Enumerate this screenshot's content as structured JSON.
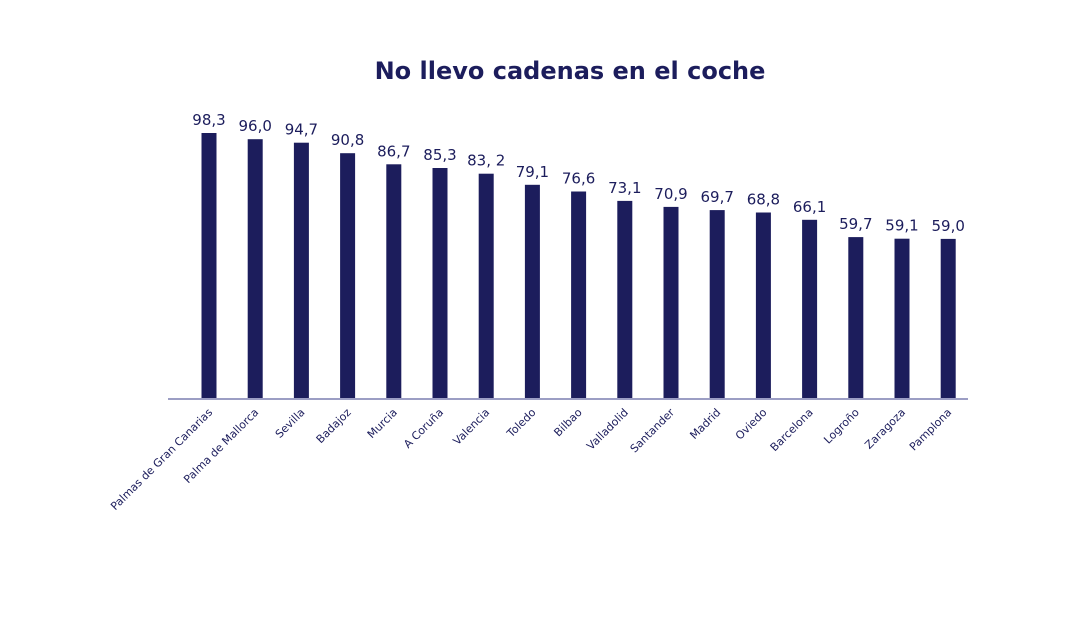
{
  "chart_data": {
    "type": "bar",
    "title": "No llevo cadenas en el coche",
    "xlabel": "",
    "ylabel": "",
    "ylim": [
      0,
      100
    ],
    "grid": false,
    "legend": "none",
    "bar_color": "#1c1d5c",
    "text_color": "#1c1d5c",
    "axis_color": "#3a3c8a",
    "categories": [
      "Palmas de Gran Canarias",
      "Palma de Mallorca",
      "Sevilla",
      "Badajoz",
      "Murcia",
      "A Coruña",
      "Valencia",
      "Toledo",
      "Bilbao",
      "Valladolid",
      "Santander",
      "Madrid",
      "Oviedo",
      "Barcelona",
      "Logroño",
      "Zaragoza",
      "Pamplona"
    ],
    "values": [
      98.3,
      96.0,
      94.7,
      90.8,
      86.7,
      85.3,
      83.2,
      79.1,
      76.6,
      73.1,
      70.9,
      69.7,
      68.8,
      66.1,
      59.7,
      59.1,
      59.0
    ],
    "value_labels": [
      "98,3",
      "96,0",
      "94,7",
      "90,8",
      "86,7",
      "85,3",
      "83, 2",
      "79,1",
      "76,6",
      "73,1",
      "70,9",
      "69,7",
      "68,8",
      "66,1",
      "59,7",
      "59,1",
      "59,0"
    ]
  }
}
